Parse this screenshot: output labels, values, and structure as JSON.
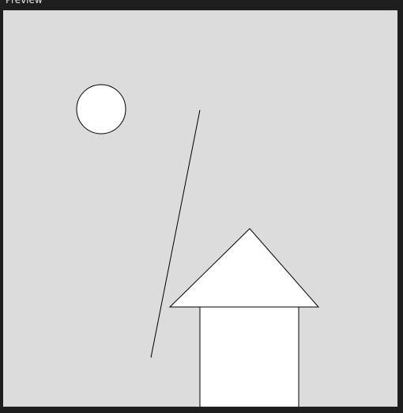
{
  "window": {
    "title": "Preview"
  },
  "canvas": {
    "background": "#dcdcdc",
    "stroke": "#000000",
    "fill": "#ffffff",
    "shapes": [
      "sun",
      "diagonal-line",
      "house-roof",
      "house-body"
    ]
  }
}
